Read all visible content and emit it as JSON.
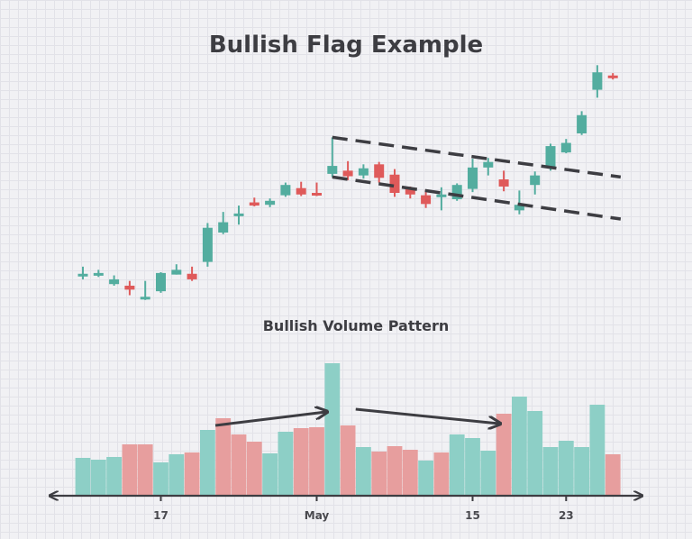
{
  "chart_data": [
    {
      "type": "candlestick",
      "title": "Bullish Flag Example",
      "colors": {
        "up": "#53ad9f",
        "down": "#df5a5a"
      },
      "candles": [
        {
          "open": 298,
          "close": 298,
          "high": 307,
          "low": 291
        },
        {
          "open": 299,
          "close": 299,
          "high": 303,
          "low": 294
        },
        {
          "open": 285,
          "close": 291,
          "high": 296,
          "low": 283
        },
        {
          "open": 283,
          "close": 278,
          "high": 289,
          "low": 271
        },
        {
          "open": 269,
          "close": 269,
          "high": 289,
          "low": 265
        },
        {
          "open": 276,
          "close": 299,
          "high": 300,
          "low": 274
        },
        {
          "open": 297,
          "close": 303,
          "high": 310,
          "low": 297
        },
        {
          "open": 298,
          "close": 291,
          "high": 307,
          "low": 289
        },
        {
          "open": 313,
          "close": 356,
          "high": 362,
          "low": 307
        },
        {
          "open": 350,
          "close": 363,
          "high": 376,
          "low": 348
        },
        {
          "open": 374,
          "close": 374,
          "high": 384,
          "low": 360
        },
        {
          "open": 388,
          "close": 384,
          "high": 394,
          "low": 383
        },
        {
          "open": 385,
          "close": 390,
          "high": 393,
          "low": 382
        },
        {
          "open": 397,
          "close": 410,
          "high": 413,
          "low": 395
        },
        {
          "open": 406,
          "close": 398,
          "high": 414,
          "low": 396
        },
        {
          "open": 400,
          "close": 397,
          "high": 413,
          "low": 396
        },
        {
          "open": 424,
          "close": 434,
          "high": 470,
          "low": 420
        },
        {
          "open": 428,
          "close": 421,
          "high": 440,
          "low": 416
        },
        {
          "open": 422,
          "close": 431,
          "high": 436,
          "low": 418
        },
        {
          "open": 436,
          "close": 419,
          "high": 439,
          "low": 413
        },
        {
          "open": 423,
          "close": 400,
          "high": 430,
          "low": 395
        },
        {
          "open": 405,
          "close": 398,
          "high": 408,
          "low": 393
        },
        {
          "open": 397,
          "close": 386,
          "high": 404,
          "low": 381
        },
        {
          "open": 398,
          "close": 398,
          "high": 407,
          "low": 378
        },
        {
          "open": 392,
          "close": 410,
          "high": 412,
          "low": 390
        },
        {
          "open": 405,
          "close": 432,
          "high": 443,
          "low": 401
        },
        {
          "open": 432,
          "close": 439,
          "high": 444,
          "low": 422
        },
        {
          "open": 417,
          "close": 408,
          "high": 428,
          "low": 402
        },
        {
          "open": 378,
          "close": 385,
          "high": 403,
          "low": 373
        },
        {
          "open": 410,
          "close": 422,
          "high": 427,
          "low": 398
        },
        {
          "open": 432,
          "close": 459,
          "high": 462,
          "low": 428
        },
        {
          "open": 451,
          "close": 463,
          "high": 468,
          "low": 450
        },
        {
          "open": 475,
          "close": 498,
          "high": 503,
          "low": 473
        },
        {
          "open": 530,
          "close": 552,
          "high": 561,
          "low": 520
        },
        {
          "open": 548,
          "close": 545,
          "high": 551,
          "low": 543
        }
      ],
      "trendlines": [
        {
          "from": [
            16,
            470
          ],
          "to": [
            34.5,
            420
          ]
        },
        {
          "from": [
            16,
            420
          ],
          "to": [
            34.5,
            367
          ]
        }
      ]
    },
    {
      "type": "bar",
      "title": "Bullish Volume Pattern",
      "x_ticks": [
        {
          "index": 5,
          "label": "17"
        },
        {
          "index": 15,
          "label": "May"
        },
        {
          "index": 25,
          "label": "15"
        },
        {
          "index": 31,
          "label": "23"
        }
      ],
      "colors": {
        "up": "#8dcfc6",
        "down": "#e79e9e"
      },
      "bars": [
        {
          "volume": 42,
          "dir": "up"
        },
        {
          "volume": 40,
          "dir": "up"
        },
        {
          "volume": 43,
          "dir": "up"
        },
        {
          "volume": 57,
          "dir": "down"
        },
        {
          "volume": 57,
          "dir": "down"
        },
        {
          "volume": 37,
          "dir": "up"
        },
        {
          "volume": 46,
          "dir": "up"
        },
        {
          "volume": 48,
          "dir": "down"
        },
        {
          "volume": 73,
          "dir": "up"
        },
        {
          "volume": 86,
          "dir": "down"
        },
        {
          "volume": 68,
          "dir": "down"
        },
        {
          "volume": 60,
          "dir": "down"
        },
        {
          "volume": 47,
          "dir": "up"
        },
        {
          "volume": 71,
          "dir": "up"
        },
        {
          "volume": 75,
          "dir": "down"
        },
        {
          "volume": 76,
          "dir": "down"
        },
        {
          "volume": 147,
          "dir": "up"
        },
        {
          "volume": 78,
          "dir": "down"
        },
        {
          "volume": 54,
          "dir": "up"
        },
        {
          "volume": 49,
          "dir": "down"
        },
        {
          "volume": 55,
          "dir": "down"
        },
        {
          "volume": 51,
          "dir": "down"
        },
        {
          "volume": 39,
          "dir": "up"
        },
        {
          "volume": 48,
          "dir": "down"
        },
        {
          "volume": 68,
          "dir": "up"
        },
        {
          "volume": 64,
          "dir": "up"
        },
        {
          "volume": 50,
          "dir": "up"
        },
        {
          "volume": 91,
          "dir": "down"
        },
        {
          "volume": 110,
          "dir": "up"
        },
        {
          "volume": 94,
          "dir": "up"
        },
        {
          "volume": 54,
          "dir": "up"
        },
        {
          "volume": 61,
          "dir": "up"
        },
        {
          "volume": 54,
          "dir": "up"
        },
        {
          "volume": 101,
          "dir": "up"
        },
        {
          "volume": 46,
          "dir": "down"
        }
      ],
      "arrows": [
        {
          "from": [
            8.5,
            78
          ],
          "to": [
            15.6,
            93
          ]
        },
        {
          "from": [
            17.5,
            96
          ],
          "to": [
            26.7,
            80
          ]
        }
      ]
    }
  ]
}
